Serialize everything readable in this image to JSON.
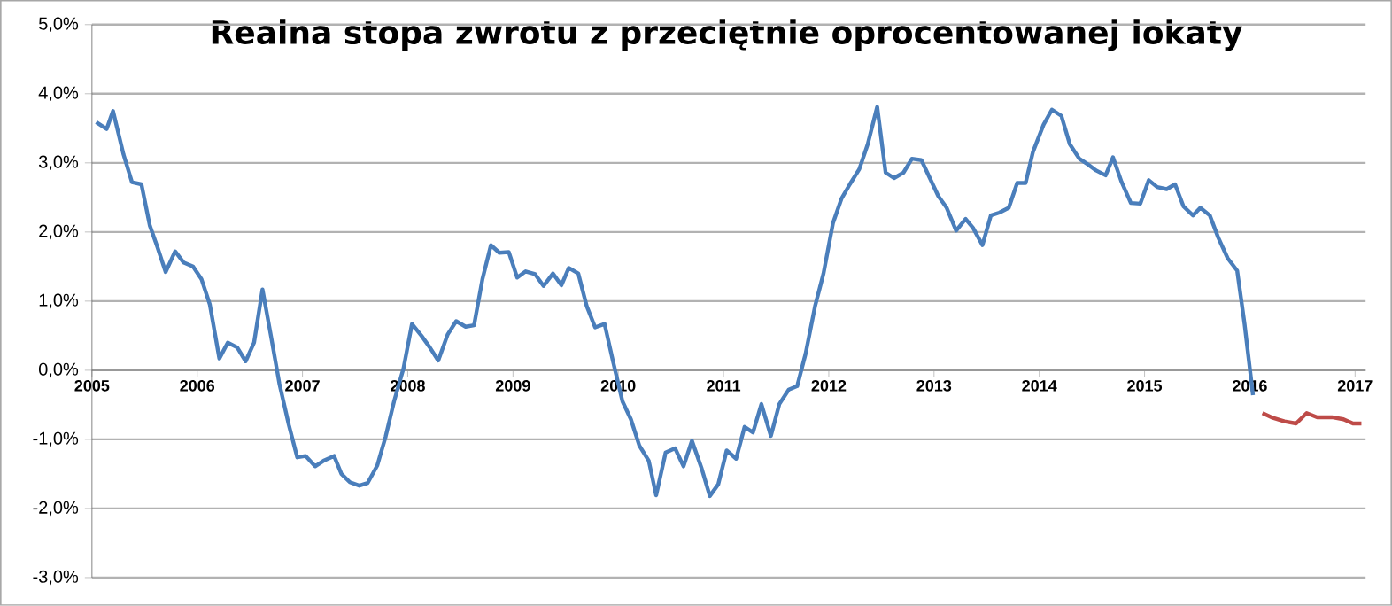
{
  "chart_data": {
    "type": "line",
    "title": "Realna stopa zwrotu z przeciętnie oprocentowanej lokaty",
    "xlim": [
      2005,
      2017.1
    ],
    "xticks": [
      2005,
      2006,
      2007,
      2008,
      2009,
      2010,
      2011,
      2012,
      2013,
      2014,
      2015,
      2016,
      2017
    ],
    "ylim": [
      -3,
      5
    ],
    "yticks": [
      {
        "value": 5,
        "label": "5,0%"
      },
      {
        "value": 4,
        "label": "4,0%"
      },
      {
        "value": 3,
        "label": "3,0%"
      },
      {
        "value": 2,
        "label": "2,0%"
      },
      {
        "value": 1,
        "label": "1,0%"
      },
      {
        "value": 0,
        "label": "0,0%"
      },
      {
        "value": -1,
        "label": "-1,0%"
      },
      {
        "value": -2,
        "label": "-2,0%"
      },
      {
        "value": -3,
        "label": "-3,0%"
      }
    ],
    "grid": "y",
    "series": [
      {
        "color": "#4a7ebb",
        "x": [
          2005.04,
          2005.14,
          2005.2,
          2005.3,
          2005.38,
          2005.47,
          2005.55,
          2005.62,
          2005.7,
          2005.79,
          2005.87,
          2005.96,
          2006.04,
          2006.12,
          2006.21,
          2006.29,
          2006.38,
          2006.46,
          2006.54,
          2006.62,
          2006.7,
          2006.78,
          2006.87,
          2006.95,
          2007.03,
          2007.12,
          2007.2,
          2007.3,
          2007.37,
          2007.45,
          2007.54,
          2007.62,
          2007.71,
          2007.79,
          2007.87,
          2007.96,
          2008.04,
          2008.13,
          2008.21,
          2008.29,
          2008.38,
          2008.46,
          2008.55,
          2008.63,
          2008.71,
          2008.79,
          2008.87,
          2008.96,
          2009.04,
          2009.12,
          2009.21,
          2009.29,
          2009.38,
          2009.46,
          2009.53,
          2009.62,
          2009.7,
          2009.78,
          2009.87,
          2009.95,
          2010.04,
          2010.12,
          2010.2,
          2010.29,
          2010.36,
          2010.45,
          2010.54,
          2010.62,
          2010.7,
          2010.79,
          2010.87,
          2010.95,
          2011.03,
          2011.12,
          2011.2,
          2011.28,
          2011.36,
          2011.45,
          2011.53,
          2011.62,
          2011.7,
          2011.78,
          2011.87,
          2011.95,
          2012.04,
          2012.12,
          2012.2,
          2012.29,
          2012.37,
          2012.46,
          2012.54,
          2012.62,
          2012.71,
          2012.79,
          2012.88,
          2012.96,
          2013.04,
          2013.12,
          2013.21,
          2013.3,
          2013.37,
          2013.46,
          2013.54,
          2013.62,
          2013.71,
          2013.79,
          2013.87,
          2013.94,
          2014.04,
          2014.12,
          2014.21,
          2014.29,
          2014.38,
          2014.46,
          2014.54,
          2014.63,
          2014.7,
          2014.78,
          2014.87,
          2014.96,
          2015.04,
          2015.12,
          2015.21,
          2015.29,
          2015.37,
          2015.46,
          2015.53,
          2015.62,
          2015.7,
          2015.79,
          2015.88,
          2015.95,
          2016.03
        ],
        "values": [
          3.59,
          3.49,
          3.75,
          3.12,
          2.72,
          2.69,
          2.09,
          1.79,
          1.42,
          1.72,
          1.56,
          1.5,
          1.32,
          0.95,
          0.17,
          0.4,
          0.33,
          0.13,
          0.4,
          1.17,
          0.5,
          -0.19,
          -0.79,
          -1.26,
          -1.24,
          -1.39,
          -1.31,
          -1.24,
          -1.5,
          -1.62,
          -1.67,
          -1.63,
          -1.38,
          -0.96,
          -0.45,
          0.03,
          0.67,
          0.5,
          0.33,
          0.14,
          0.52,
          0.71,
          0.63,
          0.65,
          1.32,
          1.81,
          1.7,
          1.71,
          1.34,
          1.43,
          1.39,
          1.22,
          1.4,
          1.23,
          1.48,
          1.4,
          0.93,
          0.62,
          0.67,
          0.13,
          -0.45,
          -0.71,
          -1.09,
          -1.31,
          -1.81,
          -1.19,
          -1.13,
          -1.39,
          -1.02,
          -1.41,
          -1.82,
          -1.65,
          -1.16,
          -1.28,
          -0.82,
          -0.9,
          -0.49,
          -0.95,
          -0.49,
          -0.28,
          -0.23,
          0.24,
          0.93,
          1.4,
          2.13,
          2.48,
          2.69,
          2.91,
          3.27,
          3.81,
          2.86,
          2.78,
          2.86,
          3.06,
          3.04,
          2.78,
          2.52,
          2.35,
          2.02,
          2.19,
          2.06,
          1.81,
          2.24,
          2.28,
          2.35,
          2.71,
          2.71,
          3.16,
          3.55,
          3.77,
          3.68,
          3.27,
          3.06,
          2.98,
          2.89,
          2.82,
          3.08,
          2.73,
          2.42,
          2.41,
          2.75,
          2.65,
          2.62,
          2.69,
          2.37,
          2.24,
          2.35,
          2.24,
          1.92,
          1.62,
          1.44,
          0.67,
          -0.36
        ]
      },
      {
        "color": "#be4b48",
        "x": [
          2016.12,
          2016.22,
          2016.33,
          2016.44,
          2016.54,
          2016.64,
          2016.78,
          2016.89,
          2016.98,
          2017.06
        ],
        "values": [
          -0.62,
          -0.69,
          -0.74,
          -0.77,
          -0.62,
          -0.68,
          -0.68,
          -0.71,
          -0.77,
          -0.77
        ]
      }
    ]
  }
}
